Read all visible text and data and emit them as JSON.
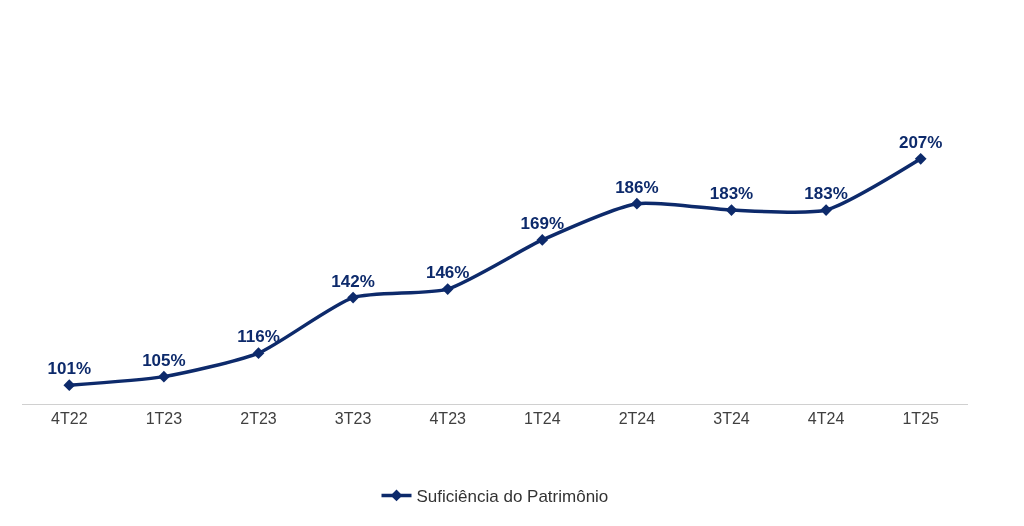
{
  "chart_data": {
    "type": "line",
    "categories": [
      "4T22",
      "1T23",
      "2T23",
      "3T23",
      "4T23",
      "1T24",
      "2T24",
      "3T24",
      "4T24",
      "1T25"
    ],
    "series": [
      {
        "name": "Suficiência do Patrimônio",
        "color": "#0d2a6b",
        "values": [
          101,
          105,
          116,
          142,
          146,
          169,
          186,
          183,
          183,
          207
        ],
        "value_labels": [
          "101%",
          "105%",
          "116%",
          "142%",
          "146%",
          "169%",
          "186%",
          "183%",
          "183%",
          "207%"
        ]
      }
    ],
    "tick_labels": "x",
    "legend": "bottom",
    "marker": "diamond",
    "line_style": "solid"
  }
}
